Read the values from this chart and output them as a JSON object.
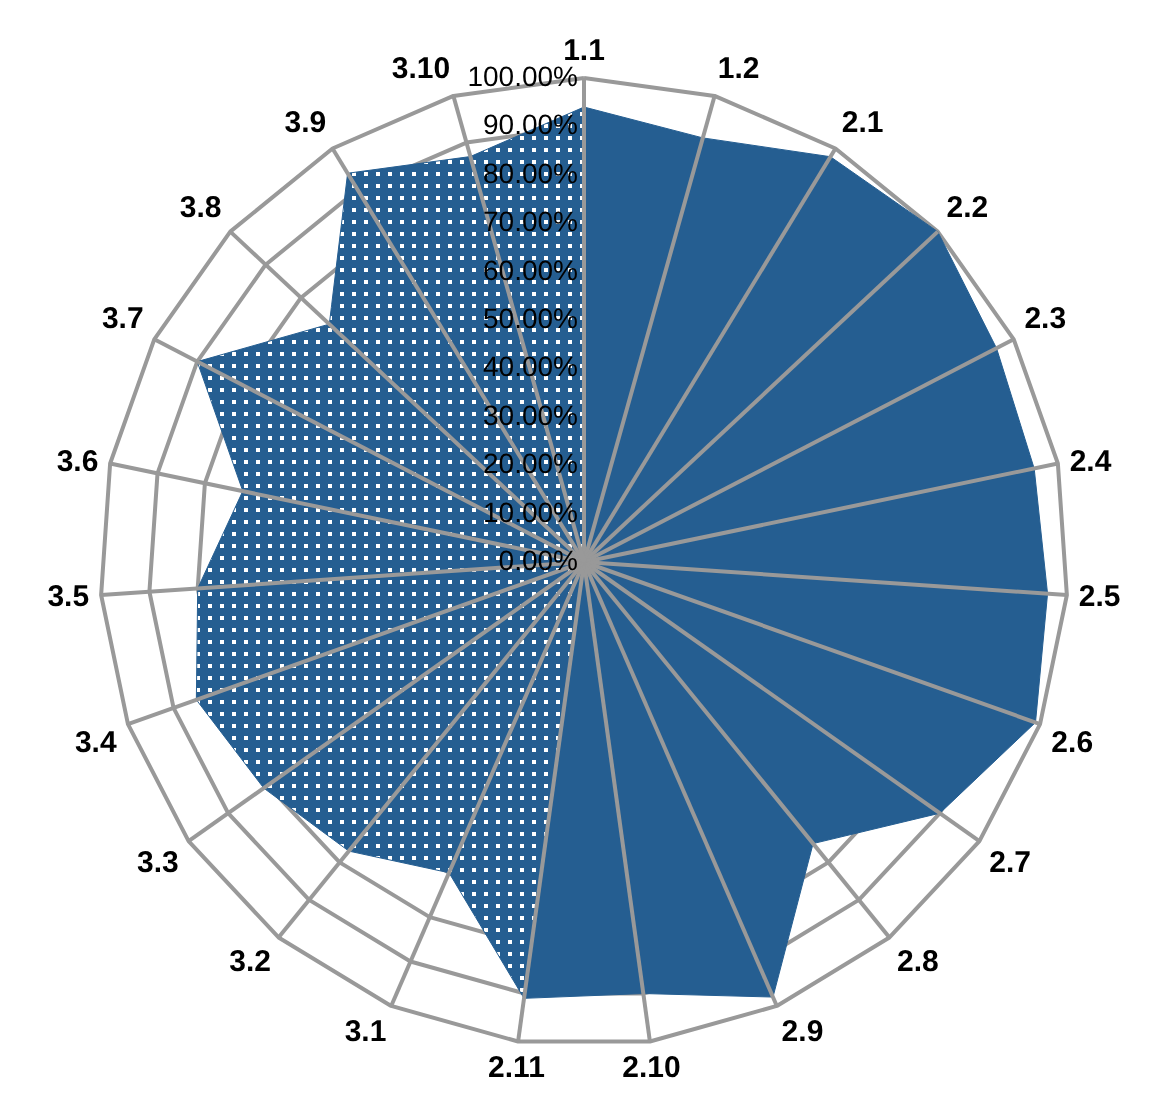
{
  "chart_data": {
    "type": "radar",
    "categories": [
      "1.1",
      "1.2",
      "2.1",
      "2.2",
      "2.3",
      "2.4",
      "2.5",
      "2.6",
      "2.7",
      "2.8",
      "2.9",
      "2.10",
      "2.11",
      "3.1",
      "3.2",
      "3.3",
      "3.4",
      "3.5",
      "3.6",
      "3.7",
      "3.8",
      "3.9",
      "3.10"
    ],
    "series": [
      {
        "color": "#255e91",
        "values": [
          94,
          91,
          98,
          100,
          96,
          95,
          96,
          99,
          90,
          75,
          98,
          90,
          91,
          0,
          0,
          0,
          0,
          0,
          0,
          0,
          0,
          0,
          0
        ]
      },
      {
        "color": "#255e91",
        "values": [
          94,
          0,
          0,
          0,
          0,
          0,
          0,
          0,
          0,
          0,
          0,
          0,
          91,
          70,
          77,
          81,
          85,
          80,
          72,
          90,
          72,
          94,
          87
        ]
      }
    ],
    "ylim": [
      0,
      100
    ],
    "yticks": [
      {
        "value": 0,
        "label": "0.00%"
      },
      {
        "value": 10,
        "label": "10.00%"
      },
      {
        "value": 20,
        "label": "20.00%"
      },
      {
        "value": 30,
        "label": "30.00%"
      },
      {
        "value": 40,
        "label": "40.00%"
      },
      {
        "value": 50,
        "label": "50.00%"
      },
      {
        "value": 60,
        "label": "60.00%"
      },
      {
        "value": 70,
        "label": "70.00%"
      },
      {
        "value": 80,
        "label": "80.00%"
      },
      {
        "value": 90,
        "label": "90.00%"
      },
      {
        "value": 100,
        "label": "100.00%"
      }
    ],
    "grid": true
  }
}
